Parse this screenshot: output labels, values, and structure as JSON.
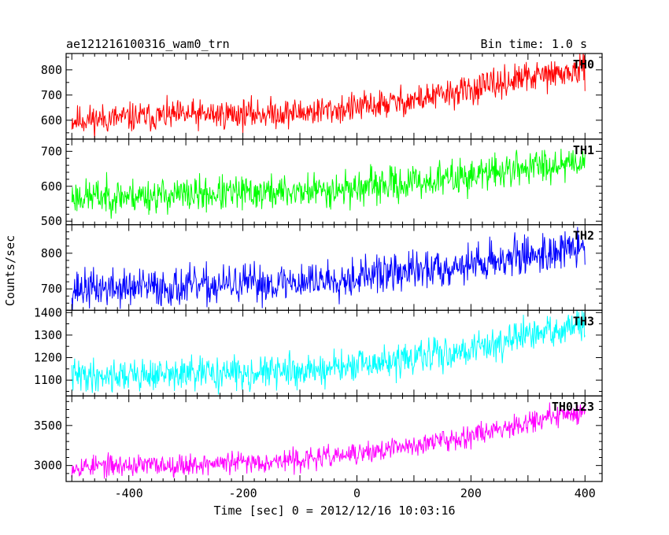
{
  "header": {
    "left": "ae121216100316_wam0_trn",
    "right": "Bin time: 1.0 s"
  },
  "axes": {
    "ylabel": "Counts/sec",
    "xlabel": "Time [sec] 0 = 2012/12/16 10:03:16"
  },
  "chart_data": {
    "type": "line",
    "title": "ae121216100316_wam0_trn",
    "subtitle": "Bin time: 1.0 s",
    "xlabel": "Time [sec] 0 = 2012/12/16 10:03:16",
    "ylabel": "Counts/sec",
    "xlim": [
      -510,
      430
    ],
    "x_range": [
      -500,
      400
    ],
    "bin_time": 1.0,
    "x_ticks": [
      -400,
      -200,
      0,
      200,
      400
    ],
    "grid": false,
    "panels": [
      {
        "name": "TH0",
        "color": "#ff0000",
        "ylim": [
          525,
          865
        ],
        "y_ticks": [
          600,
          700,
          800
        ],
        "trend": [
          [
            -500,
            600
          ],
          [
            -300,
            620
          ],
          [
            -100,
            630
          ],
          [
            0,
            650
          ],
          [
            100,
            680
          ],
          [
            200,
            720
          ],
          [
            300,
            770
          ],
          [
            400,
            795
          ]
        ],
        "noise_amplitude": 65,
        "noise_seed": 11
      },
      {
        "name": "TH1",
        "color": "#00ff00",
        "ylim": [
          490,
          735
        ],
        "y_ticks": [
          500,
          600,
          700
        ],
        "trend": [
          [
            -500,
            570
          ],
          [
            -300,
            575
          ],
          [
            -100,
            585
          ],
          [
            0,
            595
          ],
          [
            100,
            610
          ],
          [
            200,
            630
          ],
          [
            300,
            655
          ],
          [
            400,
            675
          ]
        ],
        "noise_amplitude": 55,
        "noise_seed": 23
      },
      {
        "name": "TH2",
        "color": "#0000ff",
        "ylim": [
          640,
          880
        ],
        "y_ticks": [
          700,
          800
        ],
        "trend": [
          [
            -500,
            700
          ],
          [
            -300,
            705
          ],
          [
            -100,
            720
          ],
          [
            0,
            735
          ],
          [
            100,
            750
          ],
          [
            200,
            770
          ],
          [
            300,
            795
          ],
          [
            400,
            815
          ]
        ],
        "noise_amplitude": 60,
        "noise_seed": 37
      },
      {
        "name": "TH3",
        "color": "#00ffff",
        "ylim": [
          1030,
          1410
        ],
        "y_ticks": [
          1100,
          1200,
          1300,
          1400
        ],
        "trend": [
          [
            -500,
            1120
          ],
          [
            -300,
            1125
          ],
          [
            -100,
            1140
          ],
          [
            0,
            1160
          ],
          [
            100,
            1195
          ],
          [
            200,
            1240
          ],
          [
            300,
            1295
          ],
          [
            400,
            1345
          ]
        ],
        "noise_amplitude": 80,
        "noise_seed": 41
      },
      {
        "name": "TH0123",
        "color": "#ff00ff",
        "ylim": [
          2800,
          3870
        ],
        "y_ticks": [
          3000,
          3500
        ],
        "trend": [
          [
            -500,
            2990
          ],
          [
            -300,
            3010
          ],
          [
            -100,
            3070
          ],
          [
            0,
            3140
          ],
          [
            100,
            3250
          ],
          [
            200,
            3380
          ],
          [
            300,
            3550
          ],
          [
            400,
            3680
          ]
        ],
        "noise_amplitude": 150,
        "noise_seed": 53
      }
    ]
  }
}
